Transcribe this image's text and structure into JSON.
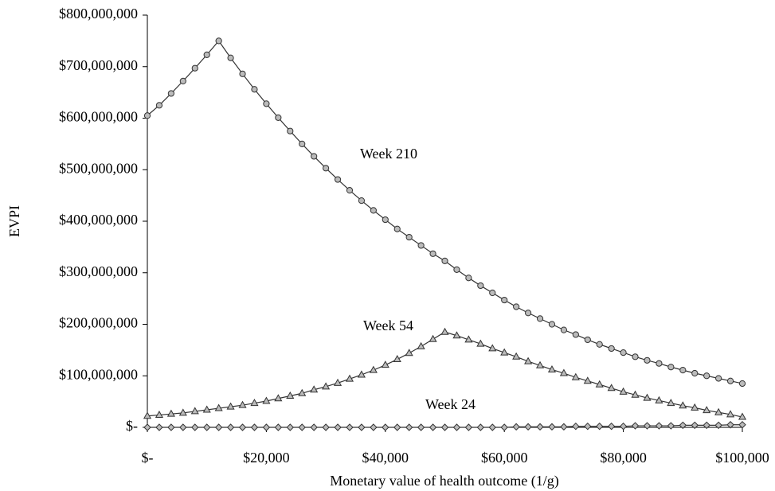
{
  "chart_data": {
    "type": "line",
    "x_label": "Monetary value of health outcome (1/g)",
    "y_label": "EVPI",
    "x": [
      0,
      2000,
      4000,
      6000,
      8000,
      10000,
      12000,
      14000,
      16000,
      18000,
      20000,
      22000,
      24000,
      26000,
      28000,
      30000,
      32000,
      34000,
      36000,
      38000,
      40000,
      42000,
      44000,
      46000,
      48000,
      50000,
      52000,
      54000,
      56000,
      58000,
      60000,
      62000,
      64000,
      66000,
      68000,
      70000,
      72000,
      74000,
      76000,
      78000,
      80000,
      82000,
      84000,
      86000,
      88000,
      90000,
      92000,
      94000,
      96000,
      98000,
      100000
    ],
    "series": [
      {
        "name": "Week 210",
        "color": "#333333",
        "marker": "circle",
        "values": [
          605000000,
          625000000,
          648000000,
          672000000,
          697000000,
          723000000,
          750000000,
          717000000,
          686000000,
          656000000,
          628000000,
          601000000,
          575000000,
          550000000,
          526000000,
          503000000,
          481000000,
          460000000,
          440000000,
          421000000,
          403000000,
          385000000,
          369000000,
          353000000,
          337000000,
          323000000,
          306000000,
          290000000,
          275000000,
          261000000,
          247000000,
          234000000,
          222000000,
          211000000,
          200000000,
          189000000,
          180000000,
          170000000,
          161000000,
          153000000,
          145000000,
          137000000,
          130000000,
          124000000,
          117000000,
          111000000,
          105000000,
          100000000,
          95000000,
          90000000,
          85000000
        ]
      },
      {
        "name": "Week 54",
        "color": "#333333",
        "marker": "triangle",
        "values": [
          22000000,
          24000000,
          26000000,
          28000000,
          31000000,
          34000000,
          37000000,
          40000000,
          43000000,
          47000000,
          51000000,
          56000000,
          61000000,
          66000000,
          73000000,
          79000000,
          86000000,
          94000000,
          102000000,
          111000000,
          121000000,
          132000000,
          144000000,
          157000000,
          171000000,
          185000000,
          178000000,
          170000000,
          162000000,
          153000000,
          145000000,
          137000000,
          128000000,
          120000000,
          112000000,
          105000000,
          97000000,
          90000000,
          83000000,
          76000000,
          69000000,
          63000000,
          57000000,
          52000000,
          47000000,
          42000000,
          38000000,
          33000000,
          29000000,
          25000000,
          20000000
        ]
      },
      {
        "name": "Week 24",
        "color": "#333333",
        "marker": "diamond",
        "values": [
          0,
          0,
          0,
          0,
          0,
          0,
          0,
          0,
          0,
          0,
          0,
          0,
          0,
          0,
          0,
          0,
          0,
          0,
          0,
          0,
          0,
          0,
          0,
          0,
          0,
          0,
          0,
          0,
          0,
          0,
          0,
          1000000,
          1000000,
          1000000,
          1000000,
          1000000,
          2000000,
          2000000,
          2000000,
          2000000,
          2000000,
          3000000,
          3000000,
          3000000,
          3000000,
          4000000,
          4000000,
          4000000,
          4000000,
          5000000,
          5000000
        ]
      }
    ],
    "xlim": [
      0,
      100000
    ],
    "xticks": [
      {
        "value": 0,
        "label": "$-"
      },
      {
        "value": 20000,
        "label": "$20,000"
      },
      {
        "value": 40000,
        "label": "$40,000"
      },
      {
        "value": 60000,
        "label": "$60,000"
      },
      {
        "value": 80000,
        "label": "$80,000"
      },
      {
        "value": 100000,
        "label": "$100,000"
      }
    ],
    "ylim": [
      0,
      800000000
    ],
    "yticks": [
      {
        "value": 0,
        "label": "$-"
      },
      {
        "value": 100000000,
        "label": "$100,000,000"
      },
      {
        "value": 200000000,
        "label": "$200,000,000"
      },
      {
        "value": 300000000,
        "label": "$300,000,000"
      },
      {
        "value": 400000000,
        "label": "$400,000,000"
      },
      {
        "value": 500000000,
        "label": "$500,000,000"
      },
      {
        "value": 600000000,
        "label": "$600,000,000"
      },
      {
        "value": 700000000,
        "label": "$700,000,000"
      },
      {
        "value": 800000000,
        "label": "$800,000,000"
      }
    ],
    "grid": false
  }
}
